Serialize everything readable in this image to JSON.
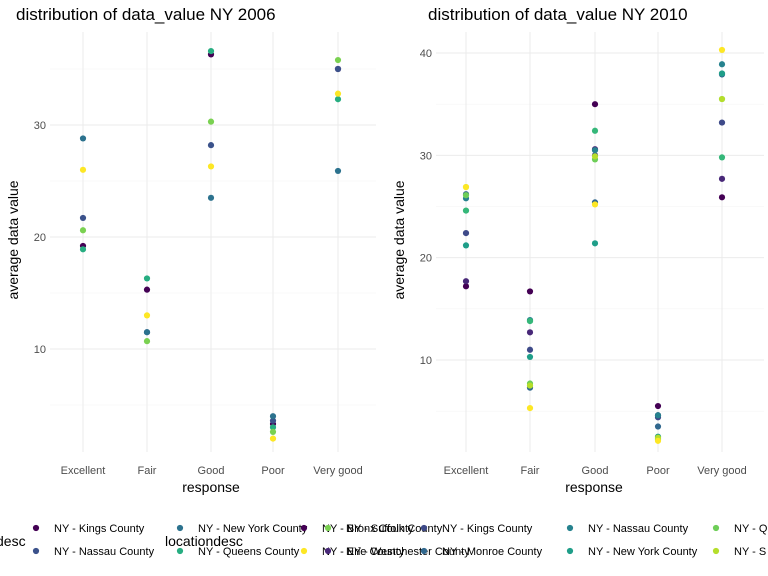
{
  "chart_data": [
    {
      "type": "scatter",
      "title": "distribution of data_value NY 2006",
      "xlabel": "response",
      "ylabel": "average data value",
      "categories": [
        "Excellent",
        "Fair",
        "Good",
        "Poor",
        "Very good"
      ],
      "yticks": [
        10,
        20,
        30
      ],
      "ylim": [
        0,
        38
      ],
      "grid": true,
      "series": [
        {
          "name": "NY - Kings County",
          "color": "#440154",
          "values": [
            19.2,
            15.3,
            36.3,
            3.3,
            35.0
          ]
        },
        {
          "name": "NY - Nassau County",
          "color": "#3b528b",
          "values": [
            21.7,
            11.5,
            28.2,
            3.6,
            35.0
          ]
        },
        {
          "name": "NY - New York County",
          "color": "#2c728e",
          "values": [
            28.8,
            11.5,
            23.5,
            4.0,
            25.9
          ]
        },
        {
          "name": "NY - Queens County",
          "color": "#27ad81",
          "values": [
            18.9,
            16.3,
            36.6,
            3.0,
            32.3
          ]
        },
        {
          "name": "NY - Suffolk County",
          "color": "#7ad151",
          "values": [
            20.6,
            10.7,
            30.3,
            2.6,
            35.8
          ]
        },
        {
          "name": "NY - Erie County",
          "color": "#fde725",
          "values": [
            26.0,
            13.0,
            26.3,
            2.0,
            32.8
          ]
        }
      ]
    },
    {
      "type": "scatter",
      "title": "distribution of data_value NY 2010",
      "xlabel": "response",
      "ylabel": "average data value",
      "categories": [
        "Excellent",
        "Fair",
        "Good",
        "Poor",
        "Very good"
      ],
      "yticks": [
        10,
        20,
        30,
        40
      ],
      "ylim": [
        1,
        42
      ],
      "grid": true,
      "series": [
        {
          "name": "NY - Bronx County",
          "color": "#440154",
          "values": [
            17.2,
            16.7,
            35.0,
            5.5,
            25.9
          ]
        },
        {
          "name": "NY - Kings County",
          "color": "#482878",
          "values": [
            17.7,
            12.7,
            30.6,
            4.6,
            27.7
          ]
        },
        {
          "name": "NY - Monroe County",
          "color": "#3e4a89",
          "values": [
            22.4,
            11.0,
            30.0,
            4.4,
            33.2
          ]
        },
        {
          "name": "NY - Nassau County",
          "color": "#31688e",
          "values": [
            26.2,
            7.3,
            25.4,
            3.5,
            37.9
          ]
        },
        {
          "name": "NY - New York County",
          "color": "#26828e",
          "values": [
            25.8,
            13.9,
            30.5,
            4.6,
            38.9
          ]
        },
        {
          "name": "NY - Queens County",
          "color": "#1f9e89",
          "values": [
            21.2,
            10.3,
            21.4,
            2.5,
            38.0
          ]
        },
        {
          "name": "NY - Suffolk County",
          "color": "#35b779",
          "values": [
            24.6,
            13.8,
            32.4,
            2.2,
            29.8
          ]
        },
        {
          "name": "NY - Westchester County",
          "color": "#6ece58",
          "values": [
            26.1,
            7.7,
            29.6,
            2.3,
            35.5
          ]
        },
        {
          "name": "NY - Erie County",
          "color": "#b5de2b",
          "values": [
            26.9,
            7.5,
            29.9,
            2.4,
            35.5
          ]
        },
        {
          "name": "NY - Onondaga County",
          "color": "#fde725",
          "values": [
            26.9,
            5.3,
            25.2,
            2.1,
            40.3
          ]
        }
      ]
    }
  ],
  "legend": {
    "title": "locationdesc",
    "title_clipped": "desc",
    "position": "bottom",
    "entries_left": [
      {
        "label": "NY - Kings County",
        "color": "#440154"
      },
      {
        "label": "NY - Nassau County",
        "color": "#3b528b"
      },
      {
        "label": "NY - New York County",
        "color": "#2c728e"
      },
      {
        "label": "NY - Queens County",
        "color": "#27ad81"
      },
      {
        "label": "NY - Bronx County",
        "color": "#440154"
      },
      {
        "label": "NY - Erie County",
        "color": "#fde725"
      },
      {
        "label": "NY - Suffolk County",
        "color": "#7ad151"
      },
      {
        "label": "NY - Westchester County",
        "color": "#482878"
      }
    ],
    "entries_right": [
      {
        "label": "NY - Kings County",
        "color": "#3e4a89"
      },
      {
        "label": "NY - Monroe County",
        "color": "#31688e"
      },
      {
        "label": "NY - Nassau County",
        "color": "#26828e"
      },
      {
        "label": "NY - New York County",
        "color": "#1f9e89"
      },
      {
        "label": "NY - Q",
        "color": "#6ece58"
      },
      {
        "label": "NY - S",
        "color": "#b5de2b"
      }
    ]
  }
}
